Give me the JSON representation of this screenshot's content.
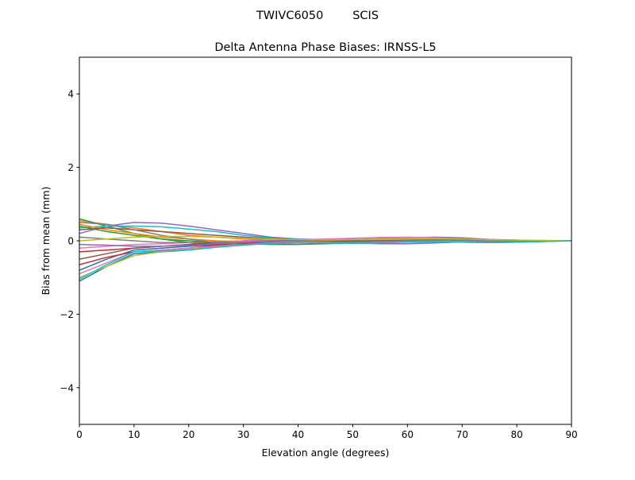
{
  "chart_data": {
    "type": "line",
    "suptitle": "TWIVC6050        SCIS",
    "title": "Delta Antenna Phase Biases: IRNSS-L5",
    "xlabel": "Elevation angle (degrees)",
    "ylabel": "Bias from mean (mm)",
    "xlim": [
      0,
      90
    ],
    "ylim": [
      -5,
      5
    ],
    "xticks": [
      0,
      10,
      20,
      30,
      40,
      50,
      60,
      70,
      80,
      90
    ],
    "yticks": [
      -4,
      -2,
      0,
      2,
      4
    ],
    "ytick_labels": [
      "−4",
      "−2",
      "0",
      "2",
      "4"
    ],
    "grid": false,
    "colors": [
      "#1f77b4",
      "#ff7f0e",
      "#2ca02c",
      "#d62728",
      "#9467bd",
      "#8c564b",
      "#e377c2",
      "#7f7f7f",
      "#bcbd22",
      "#17becf"
    ],
    "x": [
      0,
      5,
      10,
      15,
      20,
      25,
      30,
      35,
      40,
      45,
      50,
      55,
      60,
      65,
      70,
      75,
      80,
      85,
      90
    ],
    "series": [
      {
        "values": [
          -1.1,
          -0.7,
          -0.35,
          -0.3,
          -0.25,
          -0.15,
          -0.1,
          -0.05,
          0,
          0.02,
          0.03,
          0.04,
          0.05,
          0.05,
          0.03,
          0.01,
          0,
          0,
          0
        ]
      },
      {
        "values": [
          0.55,
          0.45,
          0.35,
          0.25,
          0.15,
          0.1,
          0.05,
          0.02,
          0,
          -0.02,
          -0.03,
          -0.02,
          0,
          0.02,
          0.02,
          0.01,
          0,
          0,
          0
        ]
      },
      {
        "values": [
          0.6,
          0.4,
          0.2,
          0.05,
          -0.05,
          -0.1,
          -0.1,
          -0.05,
          -0.03,
          -0.02,
          0,
          0.02,
          0.03,
          0.03,
          0.02,
          0,
          -0.01,
          0,
          0
        ]
      },
      {
        "values": [
          -0.3,
          -0.25,
          -0.2,
          -0.15,
          -0.1,
          -0.05,
          0,
          0.02,
          0.03,
          0.02,
          0,
          -0.02,
          -0.03,
          -0.02,
          0,
          0.01,
          0.01,
          0,
          0
        ]
      },
      {
        "values": [
          0.2,
          0.4,
          0.5,
          0.48,
          0.4,
          0.3,
          0.2,
          0.1,
          0.05,
          0.03,
          0.04,
          0.06,
          0.08,
          0.1,
          0.08,
          0.04,
          0.02,
          0,
          0
        ]
      },
      {
        "values": [
          -0.5,
          -0.35,
          -0.2,
          -0.15,
          -0.12,
          -0.08,
          -0.05,
          -0.03,
          0,
          0.01,
          0.02,
          0.03,
          0.02,
          0,
          -0.01,
          -0.01,
          0,
          0,
          0
        ]
      },
      {
        "values": [
          -0.2,
          -0.15,
          -0.1,
          -0.08,
          -0.05,
          -0.03,
          0,
          0.02,
          0.03,
          0.05,
          0.07,
          0.09,
          0.1,
          0.08,
          0.05,
          0.02,
          0.01,
          0,
          0
        ]
      },
      {
        "values": [
          0.1,
          0.05,
          0,
          -0.05,
          -0.05,
          -0.03,
          -0.02,
          0,
          0.01,
          0.02,
          0.02,
          0.03,
          0.03,
          0.02,
          0.01,
          0,
          0,
          0,
          0
        ]
      },
      {
        "values": [
          -1.0,
          -0.7,
          -0.4,
          -0.3,
          -0.22,
          -0.15,
          -0.08,
          -0.03,
          0,
          0.02,
          0.03,
          0.05,
          0.06,
          0.05,
          0.03,
          0.02,
          0.01,
          0,
          0
        ]
      },
      {
        "values": [
          0.35,
          0.4,
          0.4,
          0.38,
          0.32,
          0.25,
          0.15,
          0.08,
          0.04,
          0.02,
          0.02,
          0.03,
          0.04,
          0.04,
          0.03,
          0.02,
          0.01,
          0,
          0
        ]
      },
      {
        "values": [
          -0.8,
          -0.5,
          -0.25,
          -0.2,
          -0.15,
          -0.1,
          -0.05,
          -0.02,
          0,
          -0.02,
          -0.03,
          -0.03,
          -0.02,
          -0.02,
          -0.03,
          -0.04,
          -0.03,
          -0.01,
          0
        ]
      },
      {
        "values": [
          0.45,
          0.3,
          0.2,
          0.1,
          0.05,
          0,
          -0.02,
          -0.03,
          -0.04,
          -0.05,
          -0.05,
          -0.04,
          -0.03,
          -0.02,
          -0.02,
          -0.01,
          0,
          0,
          0
        ]
      },
      {
        "values": [
          0.4,
          0.25,
          0.15,
          0.05,
          0,
          -0.05,
          -0.08,
          -0.1,
          -0.1,
          -0.08,
          -0.06,
          -0.04,
          -0.03,
          -0.03,
          -0.04,
          -0.05,
          -0.04,
          -0.02,
          0
        ]
      },
      {
        "values": [
          -0.65,
          -0.45,
          -0.3,
          -0.25,
          -0.2,
          -0.12,
          -0.08,
          -0.05,
          -0.05,
          -0.06,
          -0.05,
          -0.03,
          -0.02,
          0,
          0.01,
          0,
          0,
          0,
          0
        ]
      },
      {
        "values": [
          -0.1,
          -0.12,
          -0.15,
          -0.15,
          -0.12,
          -0.08,
          -0.04,
          -0.02,
          -0.01,
          -0.03,
          -0.06,
          -0.08,
          -0.08,
          -0.06,
          -0.03,
          -0.01,
          0,
          0,
          0
        ]
      },
      {
        "values": [
          0.3,
          0.35,
          0.3,
          0.25,
          0.2,
          0.15,
          0.1,
          0.06,
          0.03,
          0.01,
          0,
          0,
          0.01,
          0.02,
          0.02,
          0.01,
          0,
          0,
          0
        ]
      },
      {
        "values": [
          -0.9,
          -0.6,
          -0.3,
          -0.25,
          -0.2,
          -0.15,
          -0.1,
          -0.06,
          -0.04,
          -0.04,
          -0.05,
          -0.04,
          -0.02,
          -0.01,
          0,
          0,
          0,
          0,
          0
        ]
      },
      {
        "values": [
          0.5,
          0.45,
          0.3,
          0.15,
          0.05,
          -0.05,
          -0.1,
          -0.08,
          -0.06,
          -0.05,
          -0.04,
          -0.02,
          0,
          0.01,
          0.01,
          0,
          0,
          0,
          0
        ]
      },
      {
        "values": [
          0.0,
          0.05,
          0.1,
          0.12,
          0.12,
          0.1,
          0.07,
          0.05,
          0.03,
          0.02,
          0.03,
          0.04,
          0.05,
          0.06,
          0.05,
          0.03,
          0.02,
          0.01,
          0
        ]
      },
      {
        "values": [
          -1.05,
          -0.65,
          -0.3,
          -0.28,
          -0.25,
          -0.18,
          -0.12,
          -0.07,
          -0.05,
          -0.06,
          -0.07,
          -0.06,
          -0.04,
          -0.03,
          -0.04,
          -0.05,
          -0.04,
          -0.02,
          0
        ]
      }
    ]
  }
}
